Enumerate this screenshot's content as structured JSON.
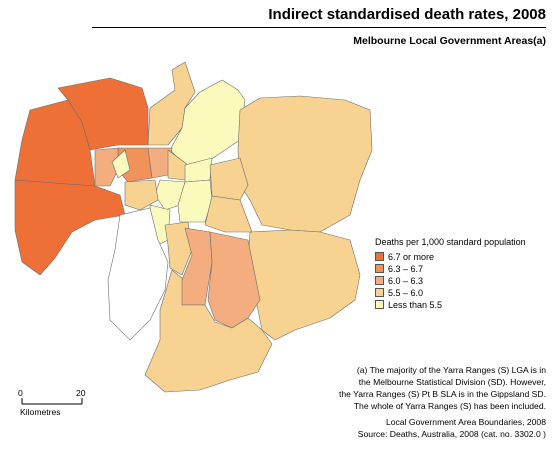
{
  "header": {
    "title": "Indirect standardised death rates, 2008",
    "subtitle": "Melbourne Local Government Areas(a)"
  },
  "legend": {
    "title": "Deaths per 1,000 standard population",
    "items": [
      {
        "label": "6.7 or more",
        "color": "#ee7036"
      },
      {
        "label": "6.3 – 6.7",
        "color": "#f0925a"
      },
      {
        "label": "6.0 – 6.3",
        "color": "#f3ad7e"
      },
      {
        "label": "5.5 – 6.0",
        "color": "#f8d290"
      },
      {
        "label": "Less than 5.5",
        "color": "#fbfabd"
      }
    ]
  },
  "scale": {
    "min": "0",
    "max": "20",
    "unit": "Kilometres"
  },
  "footnote": [
    "(a) The majority of the Yarra Ranges (S) LGA is in",
    "the Melbourne Statistical Division (SD). However,",
    "the Yarra Ranges (S) Pt B SLA is in the Gippsland SD.",
    "The whole of Yarra Ranges (S) has been included."
  ],
  "source": [
    "Local Government Area Boundaries, 2008",
    "Source: Deaths, Australia, 2008 (cat. no. 3302.0 )"
  ]
}
